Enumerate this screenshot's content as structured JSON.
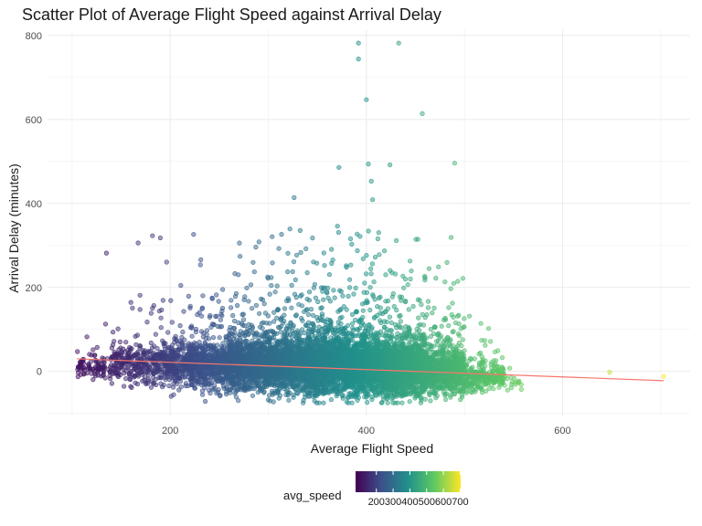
{
  "chart_data": {
    "type": "scatter",
    "title": "Scatter Plot of Average Flight Speed against Arrival Delay",
    "xlabel": "Average Flight Speed",
    "ylabel": "Arrival Delay (minutes)",
    "xlim": [
      75,
      730
    ],
    "ylim": [
      -105,
      815
    ],
    "x_ticks": [
      200,
      400,
      600
    ],
    "y_ticks": [
      0,
      200,
      400,
      600,
      800
    ],
    "grid": true,
    "color_variable": "avg_speed",
    "colorbar": {
      "title": "avg_speed",
      "ticks": [
        200,
        300,
        400,
        500,
        600,
        700
      ],
      "range": [
        76,
        703
      ],
      "colormap": "viridis",
      "colors": [
        "#440154",
        "#3b528b",
        "#21918c",
        "#5ec962",
        "#fde725"
      ],
      "position": "bottom"
    },
    "point_alpha": 0.5,
    "trend_line": {
      "type": "linear",
      "color": "#f8766d",
      "start": {
        "x": 105,
        "y": 30
      },
      "end": {
        "x": 703,
        "y": -22
      }
    },
    "points_sample": [
      {
        "x": 392,
        "y": 782
      },
      {
        "x": 433,
        "y": 782
      },
      {
        "x": 392,
        "y": 744
      },
      {
        "x": 400,
        "y": 647
      },
      {
        "x": 457,
        "y": 614
      },
      {
        "x": 490,
        "y": 496
      },
      {
        "x": 402,
        "y": 494
      },
      {
        "x": 424,
        "y": 492
      },
      {
        "x": 372,
        "y": 486
      },
      {
        "x": 405,
        "y": 453
      },
      {
        "x": 135,
        "y": 282
      },
      {
        "x": 182,
        "y": 323
      },
      {
        "x": 190,
        "y": 318
      },
      {
        "x": 648,
        "y": -2
      },
      {
        "x": 703,
        "y": -12
      }
    ],
    "cloud": [
      {
        "x": 120,
        "y": 10,
        "sy": 22,
        "n": 120
      },
      {
        "x": 160,
        "y": 15,
        "sy": 38,
        "n": 220
      },
      {
        "x": 200,
        "y": 15,
        "sy": 45,
        "n": 380
      },
      {
        "x": 240,
        "y": 15,
        "sy": 50,
        "n": 650
      },
      {
        "x": 280,
        "y": 15,
        "sy": 55,
        "n": 900
      },
      {
        "x": 320,
        "y": 15,
        "sy": 60,
        "n": 1100
      },
      {
        "x": 360,
        "y": 15,
        "sy": 62,
        "n": 1300
      },
      {
        "x": 400,
        "y": 10,
        "sy": 60,
        "n": 1400
      },
      {
        "x": 440,
        "y": 5,
        "sy": 58,
        "n": 1300
      },
      {
        "x": 480,
        "y": 0,
        "sy": 48,
        "n": 850
      },
      {
        "x": 520,
        "y": -15,
        "sy": 30,
        "n": 260
      },
      {
        "x": 550,
        "y": -30,
        "sy": 15,
        "n": 30
      }
    ]
  }
}
